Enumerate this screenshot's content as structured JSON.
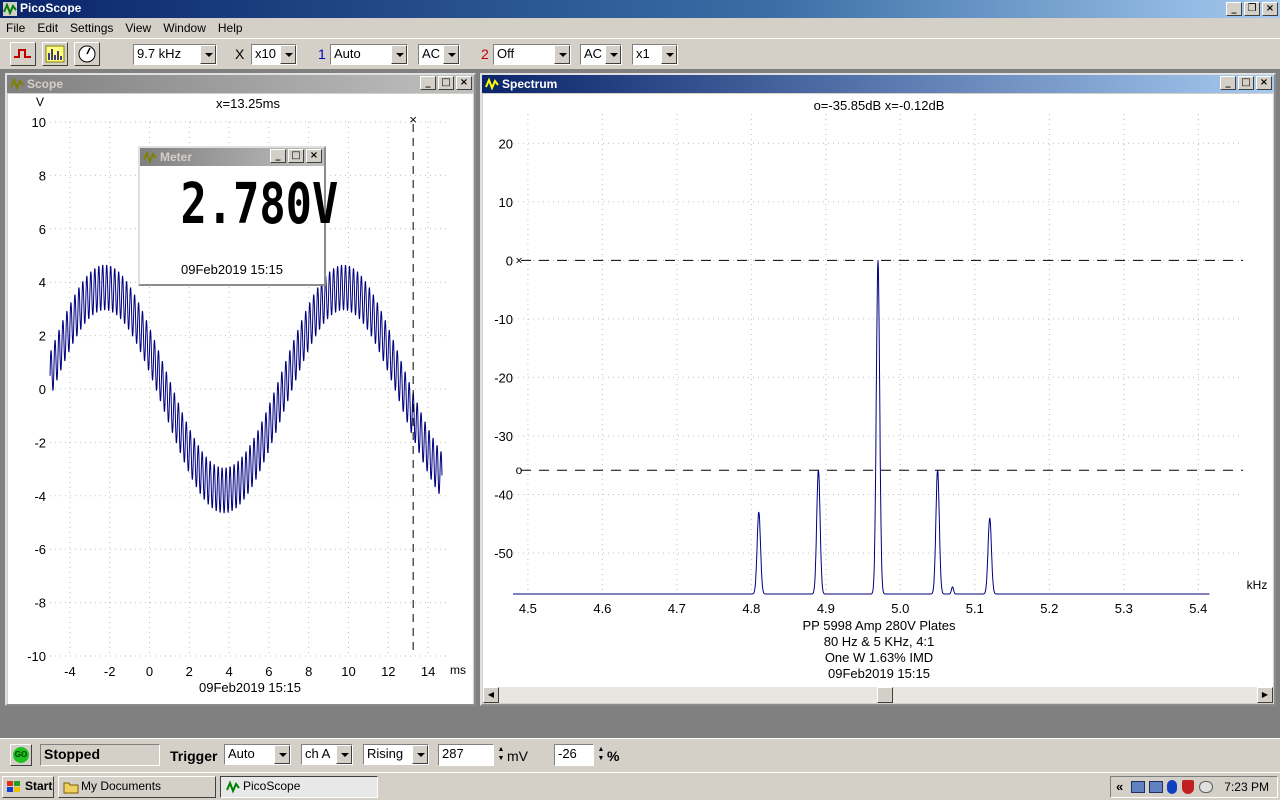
{
  "app": {
    "title": "PicoScope"
  },
  "menu": [
    "File",
    "Edit",
    "Settings",
    "View",
    "Window",
    "Help"
  ],
  "toolbar": {
    "timebase": "9.7 kHz",
    "x_symbol": "X",
    "x_mult": "x10",
    "ch1_num": "1",
    "ch1_range": "Auto",
    "ch1_coupling": "AC",
    "ch2_num": "2",
    "ch2_range": "Off",
    "ch2_coupling": "AC",
    "ch2_mult": "x1"
  },
  "scope": {
    "title": "Scope",
    "y_unit": "V",
    "x_unit": "ms",
    "cursor_readout": "x=13.25ms",
    "footer": "09Feb2019  15:15",
    "y_ticks": [
      "10",
      "8",
      "6",
      "4",
      "2",
      "0",
      "-2",
      "-4",
      "-6",
      "-8",
      "-10"
    ],
    "x_ticks": [
      "-4",
      "-2",
      "0",
      "2",
      "4",
      "6",
      "8",
      "10",
      "12",
      "14"
    ]
  },
  "meter": {
    "title": "Meter",
    "value": "2.780V",
    "timestamp": "09Feb2019  15:15"
  },
  "spectrum": {
    "title": "Spectrum",
    "cursor_readout": "o=-35.85dB  x=-0.12dB",
    "x_unit": "kHz",
    "y_ticks": [
      "20",
      "10",
      "0",
      "-10",
      "-20",
      "-30",
      "-40",
      "-50"
    ],
    "x_ticks": [
      "4.5",
      "4.6",
      "4.7",
      "4.8",
      "4.9",
      "5.0",
      "5.1",
      "5.2",
      "5.3",
      "5.4"
    ],
    "notes": [
      "PP 5998  Amp 280V Plates",
      "80 Hz & 5 KHz, 4:1",
      "One W 1.63% IMD",
      "09Feb2019  15:15"
    ]
  },
  "chart_data": [
    {
      "type": "line",
      "title": "Scope",
      "xlabel": "ms",
      "ylabel": "V",
      "xlim": [
        -5,
        15
      ],
      "ylim": [
        -10,
        10
      ],
      "series": [
        {
          "envelope_center": {
            "x": [
              -5,
              -2.25,
              3.75,
              9.75,
              14.7
            ],
            "y": [
              0.5,
              3.8,
              -3.8,
              3.8,
              -2.4
            ]
          },
          "ripple_peak_to_peak": 1.7,
          "ripple_frequency_khz": 5
        }
      ],
      "cursor_x": 13.25,
      "color": "#000080"
    },
    {
      "type": "line",
      "title": "Spectrum",
      "xlabel": "kHz",
      "ylabel": "dB",
      "xlim": [
        4.48,
        5.46
      ],
      "ylim": [
        -57,
        25
      ],
      "series": [
        {
          "peaks": {
            "x": [
              4.81,
              4.89,
              4.97,
              5.05,
              5.12
            ],
            "y": [
              -43,
              -35.8,
              0,
              -35.8,
              -44
            ]
          },
          "noise_floor": -57
        }
      ],
      "reference_lines_db": [
        0,
        -35.85
      ],
      "color": "#000080"
    }
  ],
  "status": {
    "go_label": "GO",
    "state": "Stopped",
    "trigger_label": "Trigger",
    "trigger_mode": "Auto",
    "trigger_channel": "ch A",
    "trigger_edge": "Rising",
    "trigger_level": "287",
    "trigger_unit": "mV",
    "pretrigger": "-26",
    "pretrigger_unit": "%"
  },
  "taskbar": {
    "start": "Start",
    "items": [
      "My Documents",
      "PicoScope"
    ],
    "tray_chevron": "«",
    "clock": "7:23 PM"
  }
}
